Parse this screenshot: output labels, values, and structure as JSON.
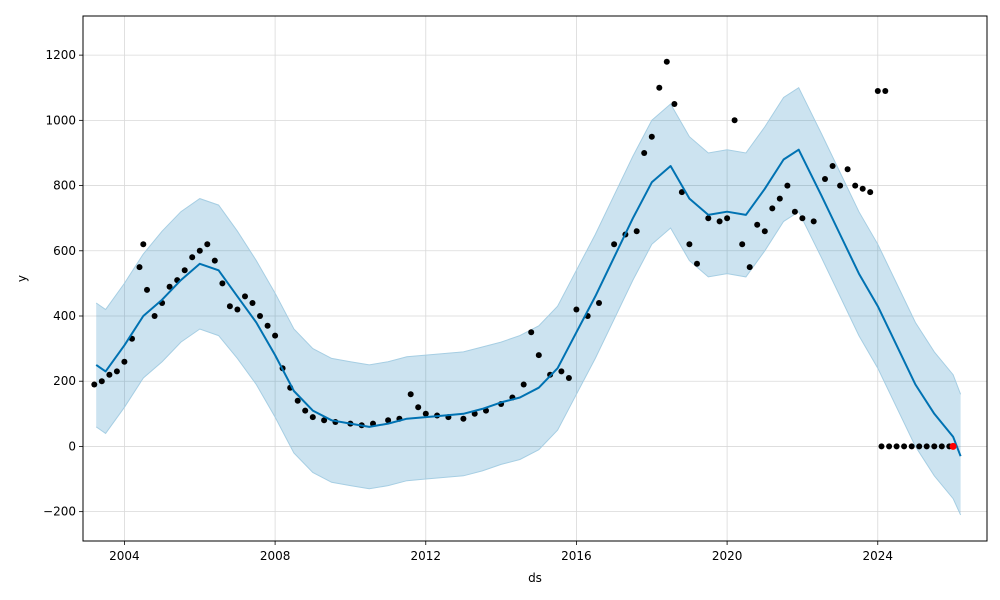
{
  "chart_data": {
    "type": "line",
    "title": "",
    "xlabel": "ds",
    "ylabel": "y",
    "xlim": [
      2002.9,
      2026.9
    ],
    "ylim": [
      -290,
      1320
    ],
    "x_ticks": [
      2004,
      2008,
      2012,
      2016,
      2020,
      2024
    ],
    "x_tick_labels": [
      "2004",
      "2008",
      "2012",
      "2016",
      "2020",
      "2024"
    ],
    "y_ticks": [
      -200,
      0,
      200,
      400,
      600,
      800,
      1000,
      1200
    ],
    "y_tick_labels": [
      "−200",
      "0",
      "200",
      "400",
      "600",
      "800",
      "1000",
      "1200"
    ],
    "grid": true,
    "colors": {
      "forecast": "#0072B2",
      "band_fill": "#0072B2",
      "band_edge": "#A6CEE3",
      "observed": "#000000",
      "highlight": "#FF0000",
      "grid": "#d9d9d9"
    },
    "series": [
      {
        "kind": "forecast_line",
        "x": [
          2003.25,
          2003.5,
          2004.0,
          2004.5,
          2005.0,
          2005.5,
          2006.0,
          2006.5,
          2007.0,
          2007.5,
          2008.0,
          2008.5,
          2009.0,
          2009.5,
          2010.0,
          2010.5,
          2011.0,
          2011.5,
          2012.0,
          2012.5,
          2013.0,
          2013.5,
          2014.0,
          2014.5,
          2015.0,
          2015.5,
          2016.0,
          2016.5,
          2017.0,
          2017.5,
          2018.0,
          2018.5,
          2019.0,
          2019.5,
          2020.0,
          2020.5,
          2021.0,
          2021.5,
          2021.9,
          2022.5,
          2023.0,
          2023.5,
          2024.0,
          2024.5,
          2025.0,
          2025.5,
          2026.0,
          2026.2
        ],
        "y": [
          250,
          230,
          310,
          400,
          450,
          510,
          560,
          540,
          460,
          380,
          280,
          170,
          110,
          80,
          70,
          60,
          70,
          85,
          90,
          95,
          100,
          115,
          135,
          150,
          180,
          240,
          350,
          460,
          580,
          700,
          810,
          860,
          760,
          710,
          720,
          710,
          790,
          880,
          910,
          770,
          650,
          530,
          430,
          310,
          190,
          100,
          30,
          -30
        ]
      },
      {
        "kind": "uncertainty_upper",
        "x": [
          2003.25,
          2003.5,
          2004.0,
          2004.5,
          2005.0,
          2005.5,
          2006.0,
          2006.5,
          2007.0,
          2007.5,
          2008.0,
          2008.5,
          2009.0,
          2009.5,
          2010.0,
          2010.5,
          2011.0,
          2011.5,
          2012.0,
          2012.5,
          2013.0,
          2013.5,
          2014.0,
          2014.5,
          2015.0,
          2015.5,
          2016.0,
          2016.5,
          2017.0,
          2017.5,
          2018.0,
          2018.5,
          2019.0,
          2019.5,
          2020.0,
          2020.5,
          2021.0,
          2021.5,
          2021.9,
          2022.5,
          2023.0,
          2023.5,
          2024.0,
          2024.5,
          2025.0,
          2025.5,
          2026.0,
          2026.2
        ],
        "y": [
          440,
          420,
          500,
          590,
          660,
          720,
          760,
          740,
          660,
          570,
          470,
          360,
          300,
          270,
          260,
          250,
          260,
          275,
          280,
          285,
          290,
          305,
          320,
          340,
          370,
          430,
          540,
          650,
          770,
          890,
          1000,
          1050,
          950,
          900,
          910,
          900,
          980,
          1070,
          1100,
          960,
          840,
          720,
          620,
          500,
          380,
          290,
          220,
          160
        ]
      },
      {
        "kind": "uncertainty_lower",
        "x": [
          2003.25,
          2003.5,
          2004.0,
          2004.5,
          2005.0,
          2005.5,
          2006.0,
          2006.5,
          2007.0,
          2007.5,
          2008.0,
          2008.5,
          2009.0,
          2009.5,
          2010.0,
          2010.5,
          2011.0,
          2011.5,
          2012.0,
          2012.5,
          2013.0,
          2013.5,
          2014.0,
          2014.5,
          2015.0,
          2015.5,
          2016.0,
          2016.5,
          2017.0,
          2017.5,
          2018.0,
          2018.5,
          2019.0,
          2019.5,
          2020.0,
          2020.5,
          2021.0,
          2021.5,
          2021.9,
          2022.5,
          2023.0,
          2023.5,
          2024.0,
          2024.5,
          2025.0,
          2025.5,
          2026.0,
          2026.2
        ],
        "y": [
          60,
          40,
          120,
          210,
          260,
          320,
          360,
          340,
          270,
          190,
          90,
          -20,
          -80,
          -110,
          -120,
          -130,
          -120,
          -105,
          -100,
          -95,
          -90,
          -75,
          -55,
          -40,
          -10,
          50,
          160,
          270,
          390,
          510,
          620,
          670,
          570,
          520,
          530,
          520,
          600,
          690,
          720,
          580,
          460,
          340,
          240,
          120,
          0,
          -90,
          -160,
          -210
        ]
      },
      {
        "kind": "observed_points",
        "x": [
          2003.2,
          2003.4,
          2003.6,
          2003.8,
          2004.0,
          2004.2,
          2004.4,
          2004.5,
          2004.6,
          2004.8,
          2005.0,
          2005.2,
          2005.4,
          2005.6,
          2005.8,
          2006.0,
          2006.2,
          2006.4,
          2006.6,
          2006.8,
          2007.0,
          2007.2,
          2007.4,
          2007.6,
          2007.8,
          2008.0,
          2008.2,
          2008.4,
          2008.6,
          2008.8,
          2009.0,
          2009.3,
          2009.6,
          2010.0,
          2010.3,
          2010.6,
          2011.0,
          2011.3,
          2011.6,
          2011.8,
          2012.0,
          2012.3,
          2012.6,
          2013.0,
          2013.3,
          2013.6,
          2014.0,
          2014.3,
          2014.6,
          2014.8,
          2015.0,
          2015.3,
          2015.6,
          2015.8,
          2016.0,
          2016.3,
          2016.6,
          2017.0,
          2017.3,
          2017.6,
          2017.8,
          2018.0,
          2018.2,
          2018.4,
          2018.6,
          2018.8,
          2019.0,
          2019.2,
          2019.5,
          2019.8,
          2020.0,
          2020.2,
          2020.4,
          2020.6,
          2020.8,
          2021.0,
          2021.2,
          2021.4,
          2021.6,
          2021.8,
          2022.0,
          2022.3,
          2022.6,
          2022.8,
          2023.0,
          2023.2,
          2023.4,
          2023.6,
          2023.8,
          2024.0,
          2024.2
        ],
        "y": [
          190,
          200,
          220,
          230,
          260,
          330,
          550,
          620,
          480,
          400,
          440,
          490,
          510,
          540,
          580,
          600,
          620,
          570,
          500,
          430,
          420,
          460,
          440,
          400,
          370,
          340,
          240,
          180,
          140,
          110,
          90,
          80,
          75,
          70,
          65,
          70,
          80,
          85,
          160,
          120,
          100,
          95,
          90,
          85,
          100,
          110,
          130,
          150,
          190,
          350,
          280,
          220,
          230,
          210,
          420,
          400,
          440,
          620,
          650,
          660,
          900,
          950,
          1100,
          1180,
          1050,
          780,
          620,
          560,
          700,
          690,
          700,
          1000,
          620,
          550,
          680,
          660,
          730,
          760,
          800,
          720,
          700,
          690,
          820,
          860,
          800,
          850,
          800,
          790,
          780,
          1090,
          1090
        ]
      },
      {
        "kind": "future_points",
        "x": [
          2024.1,
          2024.3,
          2024.5,
          2024.7,
          2024.9,
          2025.1,
          2025.3,
          2025.5,
          2025.7,
          2025.9,
          2026.0
        ],
        "y": [
          0,
          0,
          0,
          0,
          0,
          0,
          0,
          0,
          0,
          0,
          0
        ]
      },
      {
        "kind": "last_point",
        "x": [
          2026.0
        ],
        "y": [
          0
        ]
      }
    ]
  }
}
